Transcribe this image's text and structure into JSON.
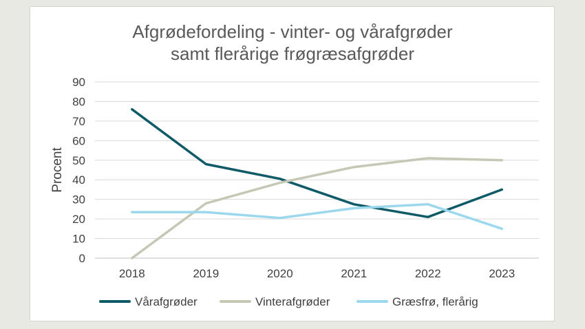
{
  "chart_data": {
    "type": "line",
    "title_lines": [
      "Afgrødefordeling - vinter- og vårafgrøder",
      "samt flerårige frøgræsafgrøder"
    ],
    "xlabel": "",
    "ylabel": "Procent",
    "categories": [
      "2018",
      "2019",
      "2020",
      "2021",
      "2022",
      "2023"
    ],
    "ylim": [
      0,
      90
    ],
    "yticks": [
      0,
      10,
      20,
      30,
      40,
      50,
      60,
      70,
      80,
      90
    ],
    "grid": true,
    "legend_position": "bottom",
    "series": [
      {
        "name": "Vårafgrøder",
        "color": "#0f5a67",
        "values": [
          76,
          48,
          40.5,
          27.5,
          21,
          35
        ]
      },
      {
        "name": "Vinterafgrøder",
        "color": "#c7c7b5",
        "values": [
          0,
          28,
          38.5,
          46.5,
          51,
          50
        ]
      },
      {
        "name": "Græsfrø, flerårig",
        "color": "#9bd8ee",
        "values": [
          23.5,
          23.5,
          20.5,
          25.5,
          27.5,
          15
        ]
      }
    ]
  }
}
